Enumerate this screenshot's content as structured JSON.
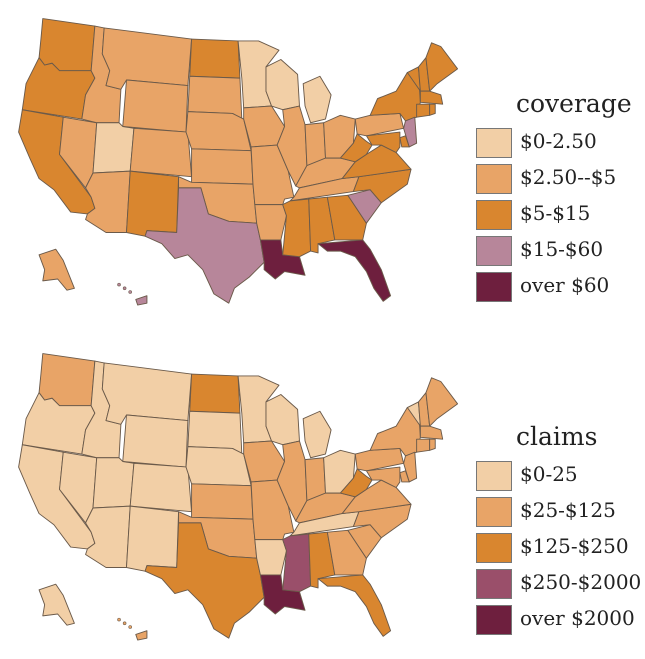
{
  "palette": {
    "c1": "#f2cfa6",
    "c2": "#e8a467",
    "c3": "#d9862f",
    "c4": "#b7869a",
    "c5": "#6e1f3e",
    "c4b": "#9a4f6a",
    "border": "#6b5a4a"
  },
  "maps": [
    {
      "legend": {
        "title": "coverage",
        "items": [
          {
            "label": "$0-2.50",
            "color": "#f2cfa6"
          },
          {
            "label": "$2.50--$5",
            "color": "#e8a467"
          },
          {
            "label": "$5-$15",
            "color": "#d9862f"
          },
          {
            "label": "$15-$60",
            "color": "#b7869a"
          },
          {
            "label": "over $60",
            "color": "#6e1f3e"
          }
        ]
      },
      "state_classes": {
        "WA": "c3",
        "OR": "c3",
        "CA": "c3",
        "NV": "c2",
        "ID": "c2",
        "MT": "c2",
        "WY": "c2",
        "UT": "c1",
        "AZ": "c2",
        "CO": "c2",
        "NM": "c3",
        "ND": "c3",
        "SD": "c2",
        "NE": "c2",
        "KS": "c2",
        "OK": "c2",
        "TX": "c4",
        "MN": "c1",
        "IA": "c2",
        "MO": "c2",
        "AR": "c2",
        "LA": "c5",
        "WI": "c1",
        "IL": "c2",
        "MI": "c1",
        "IN": "c2",
        "OH": "c2",
        "KY": "c2",
        "TN": "c2",
        "MS": "c3",
        "AL": "c3",
        "GA": "c3",
        "FL": "c5",
        "SC": "c4",
        "NC": "c3",
        "VA": "c3",
        "WV": "c3",
        "PA": "c2",
        "NY": "c3",
        "VT": "c3",
        "NH": "c3",
        "ME": "c3",
        "MA": "c3",
        "CT": "c3",
        "RI": "c3",
        "NJ": "c4",
        "DE": "c3",
        "MD": "c3",
        "AK": "c2",
        "HI": "c4"
      }
    },
    {
      "legend": {
        "title": "claims",
        "items": [
          {
            "label": "$0-25",
            "color": "#f2cfa6"
          },
          {
            "label": "$25-$125",
            "color": "#e8a467"
          },
          {
            "label": "$125-$250",
            "color": "#d9862f"
          },
          {
            "label": "$250-$2000",
            "color": "#9a4f6a"
          },
          {
            "label": "over $2000",
            "color": "#6e1f3e"
          }
        ]
      },
      "state_classes": {
        "WA": "c2",
        "OR": "c1",
        "CA": "c1",
        "NV": "c1",
        "ID": "c1",
        "MT": "c1",
        "WY": "c1",
        "UT": "c1",
        "AZ": "c1",
        "CO": "c1",
        "NM": "c1",
        "ND": "c3",
        "SD": "c1",
        "NE": "c1",
        "KS": "c2",
        "OK": "c2",
        "TX": "c3",
        "MN": "c1",
        "IA": "c2",
        "MO": "c2",
        "AR": "c1",
        "LA": "c5",
        "WI": "c1",
        "IL": "c2",
        "MI": "c1",
        "IN": "c2",
        "OH": "c1",
        "KY": "c2",
        "TN": "c1",
        "MS": "c4b",
        "AL": "c3",
        "GA": "c2",
        "FL": "c3",
        "SC": "c2",
        "NC": "c2",
        "VA": "c2",
        "WV": "c3",
        "PA": "c2",
        "NY": "c2",
        "VT": "c1",
        "NH": "c2",
        "ME": "c2",
        "MA": "c2",
        "CT": "c2",
        "RI": "c2",
        "NJ": "c2",
        "DE": "c2",
        "MD": "c2",
        "AK": "c1",
        "HI": "c2"
      }
    }
  ]
}
